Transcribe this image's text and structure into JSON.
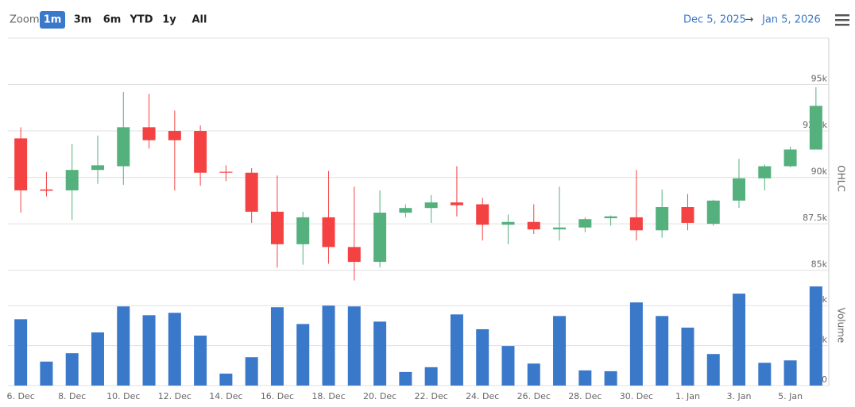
{
  "zoom": {
    "label": "Zoom",
    "buttons": [
      "1m",
      "3m",
      "6m",
      "YTD",
      "1y",
      "All"
    ],
    "selected": 0
  },
  "range": {
    "from": "Dec 5, 2025",
    "separator": "→",
    "to": "Jan 5, 2026"
  },
  "chart_data": {
    "type": "candlestick",
    "ylabel": "OHLC",
    "y2label": "Volume",
    "categories": [
      "6. Dec",
      null,
      "8. Dec",
      null,
      "10. Dec",
      null,
      "12. Dec",
      null,
      "14. Dec",
      null,
      "16. Dec",
      null,
      "18. Dec",
      null,
      "20. Dec",
      null,
      "22. Dec",
      null,
      "24. Dec",
      null,
      "26. Dec",
      null,
      "28. Dec",
      null,
      "30. Dec",
      null,
      "1. Jan",
      null,
      "3. Jan",
      null,
      "5. Jan",
      null
    ],
    "open": [
      92100,
      89350,
      89300,
      90400,
      90600,
      92700,
      92500,
      92500,
      90300,
      90250,
      88150,
      86400,
      87850,
      86250,
      85450,
      88100,
      88350,
      88650,
      88550,
      87450,
      87600,
      87200,
      87300,
      87800,
      87850,
      87150,
      88400,
      87500,
      88750,
      89950,
      90600,
      91500
    ],
    "high": [
      92700,
      90300,
      91800,
      92250,
      94600,
      94500,
      93600,
      92800,
      90650,
      90500,
      90100,
      88150,
      90350,
      89500,
      89300,
      88550,
      89050,
      90600,
      88900,
      88000,
      88550,
      89500,
      87850,
      87950,
      90400,
      89350,
      89100,
      88800,
      91000,
      90700,
      91650,
      94850
    ],
    "low": [
      88100,
      88970,
      87700,
      89650,
      89600,
      91550,
      89300,
      89550,
      89800,
      87550,
      85150,
      85300,
      85350,
      84450,
      85150,
      87850,
      87550,
      87900,
      86600,
      86400,
      86950,
      86600,
      87050,
      87400,
      86600,
      86750,
      87150,
      87400,
      88350,
      89300,
      90550,
      91500
    ],
    "close": [
      89300,
      89280,
      90400,
      90650,
      92700,
      92000,
      92000,
      90250,
      90250,
      88150,
      86400,
      87850,
      86250,
      85450,
      88100,
      88350,
      88650,
      88500,
      87450,
      87600,
      87200,
      87300,
      87750,
      87900,
      87150,
      88400,
      87550,
      88750,
      89950,
      90600,
      91500,
      93850
    ],
    "volume": [
      8300,
      3000,
      4050,
      6650,
      9900,
      8800,
      9100,
      6250,
      1500,
      3550,
      9800,
      7700,
      10000,
      9900,
      8000,
      1700,
      2300,
      8900,
      7050,
      4950,
      2750,
      8700,
      1900,
      1800,
      10400,
      8700,
      7250,
      3950,
      11500,
      2850,
      3150,
      12400
    ],
    "up_color": "#54b07c",
    "down_color": "#f44242",
    "volume_color": "#3a78c9",
    "ylim": [
      84300,
      97500
    ],
    "yticks": [
      {
        "value": 85000,
        "label": "85k"
      },
      {
        "value": 87500,
        "label": "87.5k"
      },
      {
        "value": 90000,
        "label": "90k"
      },
      {
        "value": 92500,
        "label": "92.5k"
      },
      {
        "value": 95000,
        "label": "95k"
      }
    ],
    "y2lim": [
      0,
      12800
    ],
    "y2ticks": [
      0,
      {
        "value": 5000,
        "label": "5k"
      },
      {
        "value": 10000,
        "label": "10k"
      }
    ],
    "grid": true
  }
}
